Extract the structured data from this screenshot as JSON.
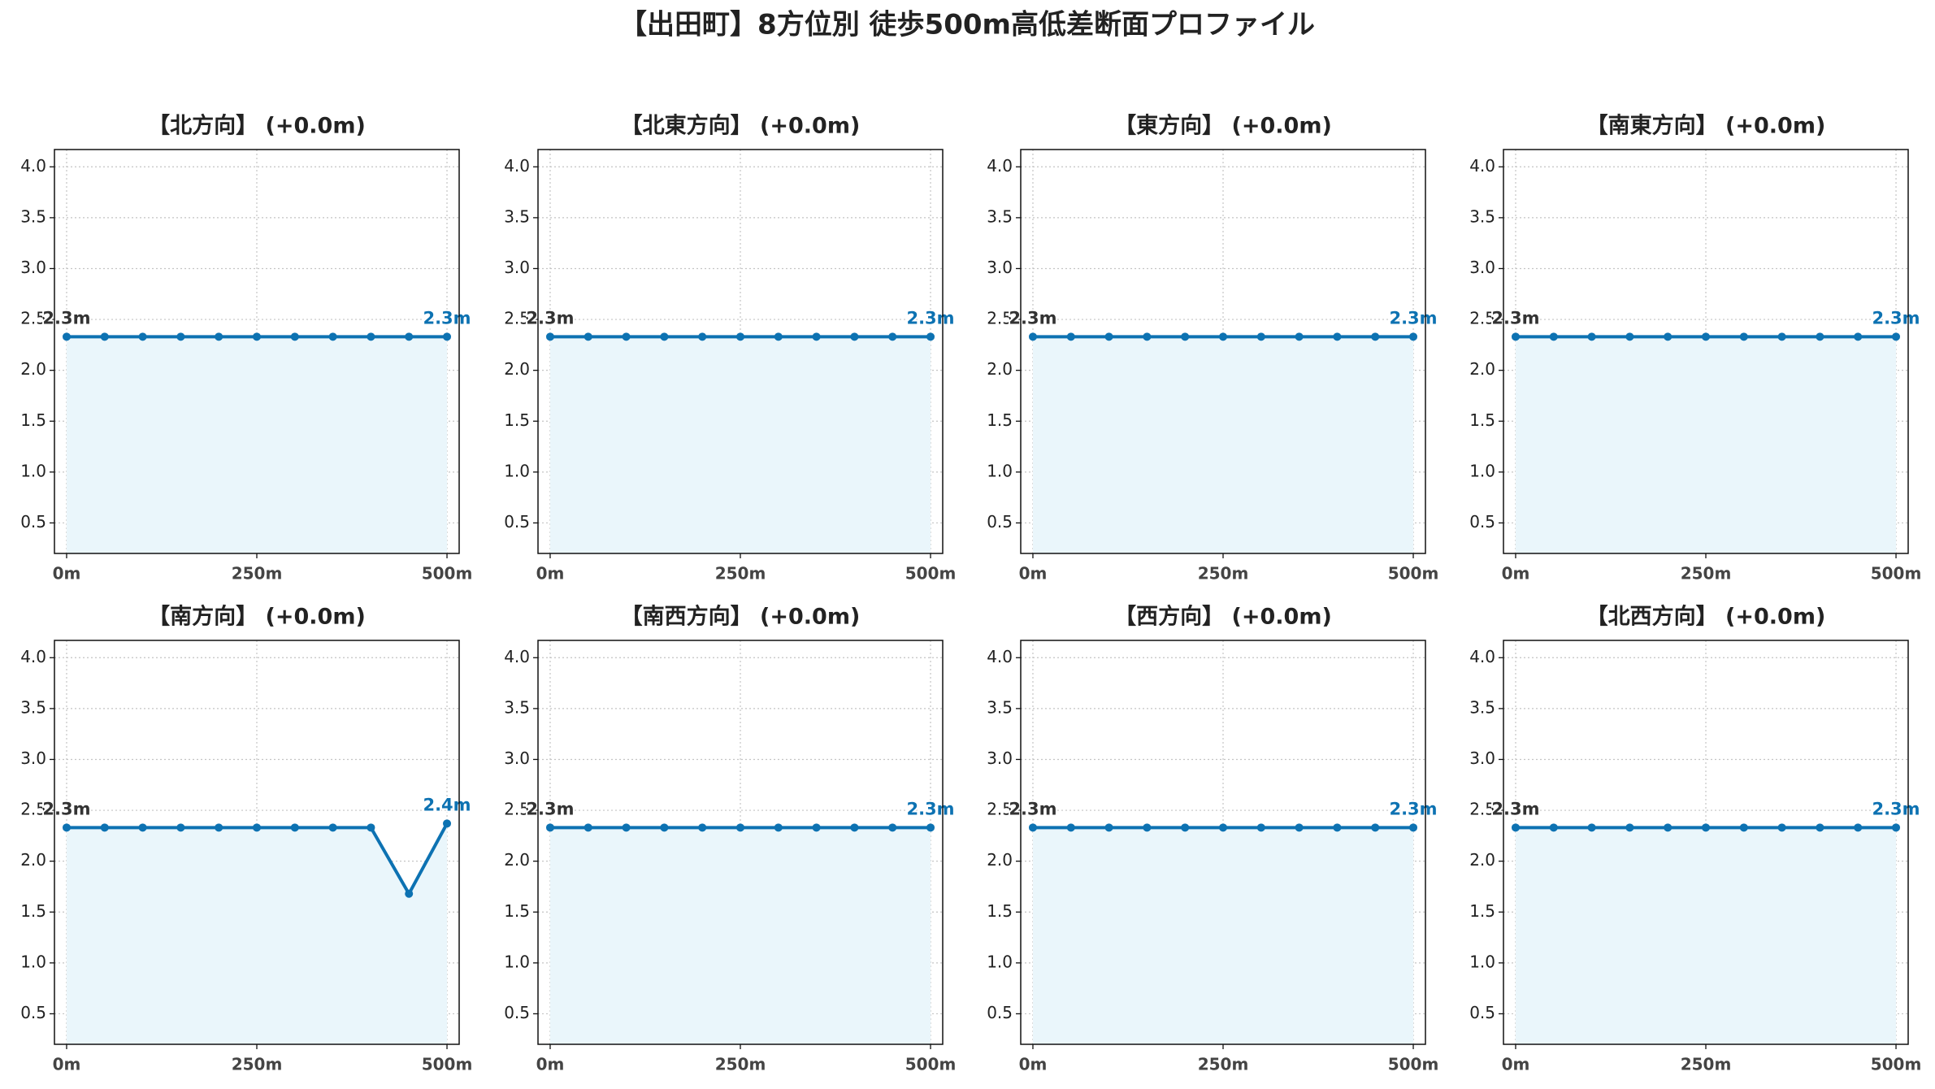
{
  "title": "【出田町】8方位別 徒歩500m高低差断面プロファイル",
  "chart_data": [
    {
      "type": "line",
      "title": "【北方向】 (+0.0m)",
      "x": [
        0,
        50,
        100,
        150,
        200,
        250,
        300,
        350,
        400,
        450,
        500
      ],
      "series": [
        {
          "color": "#0d72b2",
          "values": [
            2.33,
            2.33,
            2.33,
            2.33,
            2.33,
            2.33,
            2.33,
            2.33,
            2.33,
            2.33,
            2.33
          ],
          "value_labels": [
            "2.3m",
            null,
            null,
            null,
            null,
            null,
            null,
            null,
            null,
            null,
            "2.3m"
          ]
        }
      ],
      "xlim": [
        -16,
        516
      ],
      "xticks": [
        {
          "value": 0,
          "label": "0m"
        },
        {
          "value": 250,
          "label": "250m"
        },
        {
          "value": 500,
          "label": "500m"
        }
      ],
      "ylim": [
        0.2,
        4.17
      ],
      "yticks": [
        0.5,
        {
          "value": 1,
          "label": "1.0"
        },
        1.5,
        {
          "value": 2,
          "label": "2.0"
        },
        2.5,
        {
          "value": 3,
          "label": "3.0"
        },
        3.5,
        {
          "value": 4,
          "label": "4.0"
        }
      ],
      "grid": true
    },
    {
      "type": "line",
      "title": "【北東方向】 (+0.0m)",
      "x": [
        0,
        50,
        100,
        150,
        200,
        250,
        300,
        350,
        400,
        450,
        500
      ],
      "series": [
        {
          "color": "#0d72b2",
          "values": [
            2.33,
            2.33,
            2.33,
            2.33,
            2.33,
            2.33,
            2.33,
            2.33,
            2.33,
            2.33,
            2.33
          ],
          "value_labels": [
            "2.3m",
            null,
            null,
            null,
            null,
            null,
            null,
            null,
            null,
            null,
            "2.3m"
          ]
        }
      ],
      "xlim": [
        -16,
        516
      ],
      "xticks": [
        {
          "value": 0,
          "label": "0m"
        },
        {
          "value": 250,
          "label": "250m"
        },
        {
          "value": 500,
          "label": "500m"
        }
      ],
      "ylim": [
        0.2,
        4.17
      ],
      "yticks": [
        0.5,
        {
          "value": 1,
          "label": "1.0"
        },
        1.5,
        {
          "value": 2,
          "label": "2.0"
        },
        2.5,
        {
          "value": 3,
          "label": "3.0"
        },
        3.5,
        {
          "value": 4,
          "label": "4.0"
        }
      ],
      "grid": true
    },
    {
      "type": "line",
      "title": "【東方向】 (+0.0m)",
      "x": [
        0,
        50,
        100,
        150,
        200,
        250,
        300,
        350,
        400,
        450,
        500
      ],
      "series": [
        {
          "color": "#0d72b2",
          "values": [
            2.33,
            2.33,
            2.33,
            2.33,
            2.33,
            2.33,
            2.33,
            2.33,
            2.33,
            2.33,
            2.33
          ],
          "value_labels": [
            "2.3m",
            null,
            null,
            null,
            null,
            null,
            null,
            null,
            null,
            null,
            "2.3m"
          ]
        }
      ],
      "xlim": [
        -16,
        516
      ],
      "xticks": [
        {
          "value": 0,
          "label": "0m"
        },
        {
          "value": 250,
          "label": "250m"
        },
        {
          "value": 500,
          "label": "500m"
        }
      ],
      "ylim": [
        0.2,
        4.17
      ],
      "yticks": [
        0.5,
        {
          "value": 1,
          "label": "1.0"
        },
        1.5,
        {
          "value": 2,
          "label": "2.0"
        },
        2.5,
        {
          "value": 3,
          "label": "3.0"
        },
        3.5,
        {
          "value": 4,
          "label": "4.0"
        }
      ],
      "grid": true
    },
    {
      "type": "line",
      "title": "【南東方向】 (+0.0m)",
      "x": [
        0,
        50,
        100,
        150,
        200,
        250,
        300,
        350,
        400,
        450,
        500
      ],
      "series": [
        {
          "color": "#0d72b2",
          "values": [
            2.33,
            2.33,
            2.33,
            2.33,
            2.33,
            2.33,
            2.33,
            2.33,
            2.33,
            2.33,
            2.33
          ],
          "value_labels": [
            "2.3m",
            null,
            null,
            null,
            null,
            null,
            null,
            null,
            null,
            null,
            "2.3m"
          ]
        }
      ],
      "xlim": [
        -16,
        516
      ],
      "xticks": [
        {
          "value": 0,
          "label": "0m"
        },
        {
          "value": 250,
          "label": "250m"
        },
        {
          "value": 500,
          "label": "500m"
        }
      ],
      "ylim": [
        0.2,
        4.17
      ],
      "yticks": [
        0.5,
        {
          "value": 1,
          "label": "1.0"
        },
        1.5,
        {
          "value": 2,
          "label": "2.0"
        },
        2.5,
        {
          "value": 3,
          "label": "3.0"
        },
        3.5,
        {
          "value": 4,
          "label": "4.0"
        }
      ],
      "grid": true
    },
    {
      "type": "line",
      "title": "【南方向】 (+0.0m)",
      "x": [
        0,
        50,
        100,
        150,
        200,
        250,
        300,
        350,
        400,
        450,
        500
      ],
      "series": [
        {
          "color": "#0d72b2",
          "values": [
            2.33,
            2.33,
            2.33,
            2.33,
            2.33,
            2.33,
            2.33,
            2.33,
            2.33,
            1.68,
            2.37
          ],
          "value_labels": [
            "2.3m",
            null,
            null,
            null,
            null,
            null,
            null,
            null,
            null,
            null,
            "2.4m"
          ]
        }
      ],
      "xlim": [
        -16,
        516
      ],
      "xticks": [
        {
          "value": 0,
          "label": "0m"
        },
        {
          "value": 250,
          "label": "250m"
        },
        {
          "value": 500,
          "label": "500m"
        }
      ],
      "ylim": [
        0.2,
        4.17
      ],
      "yticks": [
        0.5,
        {
          "value": 1,
          "label": "1.0"
        },
        1.5,
        {
          "value": 2,
          "label": "2.0"
        },
        2.5,
        {
          "value": 3,
          "label": "3.0"
        },
        3.5,
        {
          "value": 4,
          "label": "4.0"
        }
      ],
      "grid": true
    },
    {
      "type": "line",
      "title": "【南西方向】 (+0.0m)",
      "x": [
        0,
        50,
        100,
        150,
        200,
        250,
        300,
        350,
        400,
        450,
        500
      ],
      "series": [
        {
          "color": "#0d72b2",
          "values": [
            2.33,
            2.33,
            2.33,
            2.33,
            2.33,
            2.33,
            2.33,
            2.33,
            2.33,
            2.33,
            2.33
          ],
          "value_labels": [
            "2.3m",
            null,
            null,
            null,
            null,
            null,
            null,
            null,
            null,
            null,
            "2.3m"
          ]
        }
      ],
      "xlim": [
        -16,
        516
      ],
      "xticks": [
        {
          "value": 0,
          "label": "0m"
        },
        {
          "value": 250,
          "label": "250m"
        },
        {
          "value": 500,
          "label": "500m"
        }
      ],
      "ylim": [
        0.2,
        4.17
      ],
      "yticks": [
        0.5,
        {
          "value": 1,
          "label": "1.0"
        },
        1.5,
        {
          "value": 2,
          "label": "2.0"
        },
        2.5,
        {
          "value": 3,
          "label": "3.0"
        },
        3.5,
        {
          "value": 4,
          "label": "4.0"
        }
      ],
      "grid": true
    },
    {
      "type": "line",
      "title": "【西方向】 (+0.0m)",
      "x": [
        0,
        50,
        100,
        150,
        200,
        250,
        300,
        350,
        400,
        450,
        500
      ],
      "series": [
        {
          "color": "#0d72b2",
          "values": [
            2.33,
            2.33,
            2.33,
            2.33,
            2.33,
            2.33,
            2.33,
            2.33,
            2.33,
            2.33,
            2.33
          ],
          "value_labels": [
            "2.3m",
            null,
            null,
            null,
            null,
            null,
            null,
            null,
            null,
            null,
            "2.3m"
          ]
        }
      ],
      "xlim": [
        -16,
        516
      ],
      "xticks": [
        {
          "value": 0,
          "label": "0m"
        },
        {
          "value": 250,
          "label": "250m"
        },
        {
          "value": 500,
          "label": "500m"
        }
      ],
      "ylim": [
        0.2,
        4.17
      ],
      "yticks": [
        0.5,
        {
          "value": 1,
          "label": "1.0"
        },
        1.5,
        {
          "value": 2,
          "label": "2.0"
        },
        2.5,
        {
          "value": 3,
          "label": "3.0"
        },
        3.5,
        {
          "value": 4,
          "label": "4.0"
        }
      ],
      "grid": true
    },
    {
      "type": "line",
      "title": "【北西方向】 (+0.0m)",
      "x": [
        0,
        50,
        100,
        150,
        200,
        250,
        300,
        350,
        400,
        450,
        500
      ],
      "series": [
        {
          "color": "#0d72b2",
          "values": [
            2.33,
            2.33,
            2.33,
            2.33,
            2.33,
            2.33,
            2.33,
            2.33,
            2.33,
            2.33,
            2.33
          ],
          "value_labels": [
            "2.3m",
            null,
            null,
            null,
            null,
            null,
            null,
            null,
            null,
            null,
            "2.3m"
          ]
        }
      ],
      "xlim": [
        -16,
        516
      ],
      "xticks": [
        {
          "value": 0,
          "label": "0m"
        },
        {
          "value": 250,
          "label": "250m"
        },
        {
          "value": 500,
          "label": "500m"
        }
      ],
      "ylim": [
        0.2,
        4.17
      ],
      "yticks": [
        0.5,
        {
          "value": 1,
          "label": "1.0"
        },
        1.5,
        {
          "value": 2,
          "label": "2.0"
        },
        2.5,
        {
          "value": 3,
          "label": "3.0"
        },
        3.5,
        {
          "value": 4,
          "label": "4.0"
        }
      ],
      "grid": true
    }
  ]
}
